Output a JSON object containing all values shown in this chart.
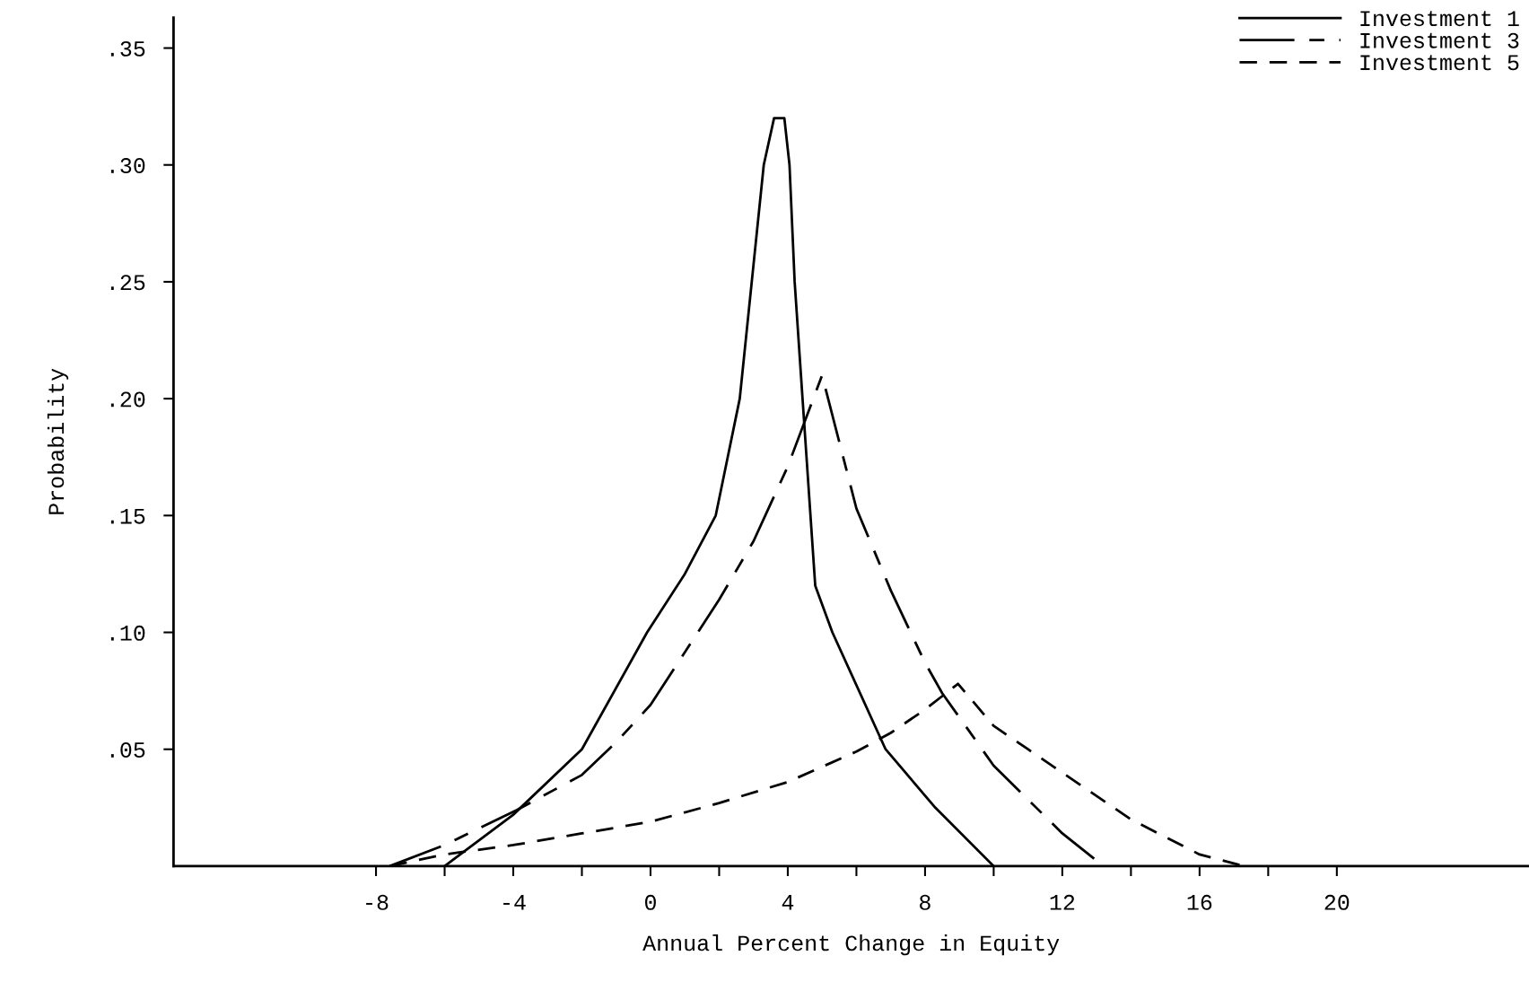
{
  "chart_data": {
    "type": "line",
    "xlabel": "Annual Percent Change in Equity",
    "ylabel": "Probability",
    "xlim": [
      -13.9,
      25.6
    ],
    "ylim": [
      0,
      0.363
    ],
    "xticks": [
      -8,
      {
        "value": -6,
        "label": null
      },
      -4,
      {
        "value": -2,
        "label": null
      },
      0,
      {
        "value": 2,
        "label": null
      },
      4,
      {
        "value": 6,
        "label": null
      },
      8,
      {
        "value": 10,
        "label": null
      },
      12,
      {
        "value": 14,
        "label": null
      },
      16,
      {
        "value": 18,
        "label": null
      },
      20
    ],
    "yticks": [
      {
        "value": 0.05,
        "label": ".05"
      },
      {
        "value": 0.1,
        "label": ".10"
      },
      {
        "value": 0.15,
        "label": ".15"
      },
      {
        "value": 0.2,
        "label": ".20"
      },
      {
        "value": 0.25,
        "label": ".25"
      },
      {
        "value": 0.3,
        "label": ".30"
      },
      {
        "value": 0.35,
        "label": ".35"
      }
    ],
    "grid": false,
    "legend": "top right",
    "marker": "none",
    "series": [
      {
        "name": "Investment 1",
        "color": "#000000",
        "line_style": "solid",
        "x": [
          -6,
          -4,
          -2,
          -0.1,
          1,
          1.9,
          2.6,
          3.3,
          3.6,
          3.9,
          4.05,
          4.2,
          4.43,
          4.8,
          5.3,
          6.85,
          8.3,
          10
        ],
        "values": [
          0,
          0.022,
          0.05,
          0.1,
          0.125,
          0.15,
          0.2,
          0.3,
          0.32,
          0.32,
          0.3,
          0.25,
          0.2,
          0.12,
          0.1,
          0.05,
          0.025,
          0
        ]
      },
      {
        "name": "Investment 3",
        "color": "#000000",
        "line_style": "dashdot",
        "x": [
          -7.6,
          -6,
          -3.9,
          -2,
          -1,
          0,
          2,
          3,
          4,
          5,
          6,
          7,
          8,
          8.5,
          10,
          12,
          13.2
        ],
        "values": [
          0,
          0.009,
          0.024,
          0.039,
          0.053,
          0.069,
          0.114,
          0.139,
          0.171,
          0.21,
          0.153,
          0.118,
          0.087,
          0.074,
          0.043,
          0.014,
          0
        ]
      },
      {
        "name": "Investment 5",
        "color": "#000000",
        "line_style": "dashed",
        "x": [
          -7.6,
          -6,
          -4,
          -2,
          0,
          2,
          4,
          6,
          7,
          8,
          8.96,
          10,
          11,
          12.7,
          14,
          16,
          17.3
        ],
        "values": [
          0,
          0.005,
          0.009,
          0.014,
          0.019,
          0.027,
          0.036,
          0.049,
          0.057,
          0.067,
          0.078,
          0.06,
          0.05,
          0.033,
          0.02,
          0.005,
          0
        ]
      }
    ]
  }
}
